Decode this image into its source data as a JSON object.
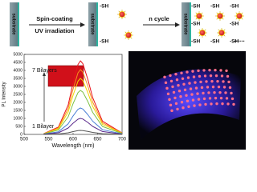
{
  "diagram": {
    "substrate": "substrate",
    "step1_top": "Spin-coating",
    "step1_bottom": "UV irradiation",
    "step2": "n cycle",
    "sh_label": "-SH",
    "ellipsis": "......"
  },
  "chart_data": {
    "type": "line",
    "x_label": "Wavelength (nm)",
    "y_label": "PL Intensity",
    "annotations": [
      "7 Bilayers",
      "1 Bilayer"
    ],
    "x": [
      540,
      570,
      590,
      600,
      610,
      615,
      620,
      630,
      640,
      660,
      700
    ],
    "series": [
      {
        "color": "#e8101a",
        "values": [
          46,
          460,
          1840,
          3220,
          4370,
          4600,
          4416,
          3450,
          2300,
          828,
          92
        ]
      },
      {
        "color": "#f7901e",
        "values": [
          40,
          405,
          1620,
          2835,
          3848,
          4050,
          3888,
          3038,
          2025,
          729,
          81
        ]
      },
      {
        "color": "#f2d600",
        "values": [
          35,
          350,
          1400,
          2450,
          3325,
          3500,
          3360,
          2625,
          1750,
          630,
          70
        ]
      },
      {
        "color": "#7bc043",
        "values": [
          28,
          275,
          1100,
          1925,
          2613,
          2750,
          2640,
          2063,
          1375,
          495,
          55
        ]
      },
      {
        "color": "#4a7fd6",
        "values": [
          17,
          165,
          660,
          1155,
          1568,
          1650,
          1584,
          1238,
          825,
          297,
          33
        ]
      },
      {
        "color": "#5b2a8c",
        "values": [
          10,
          100,
          400,
          700,
          950,
          1000,
          960,
          750,
          500,
          180,
          20
        ]
      },
      {
        "color": "#555555",
        "values": [
          3,
          25,
          100,
          175,
          238,
          250,
          240,
          188,
          125,
          45,
          5
        ]
      }
    ],
    "xlim": [
      500,
      700
    ],
    "xticks": [
      500,
      550,
      600,
      650,
      700
    ],
    "ylim": [
      0,
      5000
    ],
    "yticks": [
      0,
      500,
      1000,
      1500,
      2000,
      2500,
      3000,
      3500,
      4000,
      4500,
      5000
    ]
  }
}
